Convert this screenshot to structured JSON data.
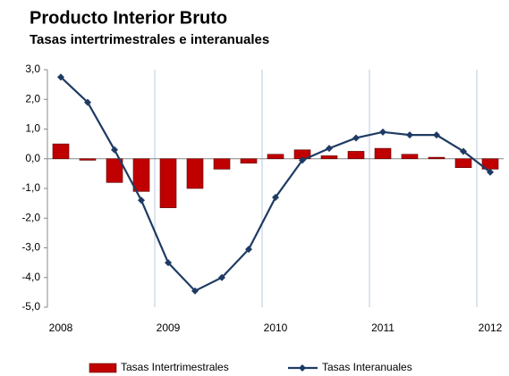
{
  "chart_data": {
    "type": "bar",
    "title": "Producto Interior Bruto",
    "subtitle": "Tasas intertrimestrales e interanuales",
    "categories": [
      "2008",
      null,
      null,
      null,
      "2009",
      null,
      null,
      null,
      "2010",
      null,
      null,
      null,
      "2011",
      null,
      null,
      null,
      "2012"
    ],
    "series": [
      {
        "name": "Tasas Intertrimestrales",
        "type": "bar",
        "color": "#c00000",
        "values": [
          0.5,
          -0.05,
          -0.8,
          -1.1,
          -1.65,
          -1.0,
          -0.35,
          -0.15,
          0.15,
          0.3,
          0.1,
          0.25,
          0.35,
          0.15,
          0.05,
          -0.3,
          -0.35
        ]
      },
      {
        "name": "Tasas Interanuales",
        "type": "line",
        "color": "#1f3b63",
        "values": [
          2.75,
          1.9,
          0.3,
          -1.4,
          -3.5,
          -4.45,
          -4.0,
          -3.05,
          -1.3,
          -0.05,
          0.35,
          0.7,
          0.9,
          0.8,
          0.8,
          0.25,
          -0.45
        ]
      }
    ],
    "ylim": [
      -5,
      3
    ],
    "yticks": [
      {
        "value": 3,
        "label": "3,0"
      },
      {
        "value": 2,
        "label": "2,0"
      },
      {
        "value": 1,
        "label": "1,0"
      },
      {
        "value": 0,
        "label": "0,0"
      },
      {
        "value": -1,
        "label": "-1,0"
      },
      {
        "value": -2,
        "label": "-2,0"
      },
      {
        "value": -3,
        "label": "-3,0"
      },
      {
        "value": -4,
        "label": "-4,0"
      },
      {
        "value": -5,
        "label": "-5,0"
      }
    ],
    "legend": "bottom"
  }
}
